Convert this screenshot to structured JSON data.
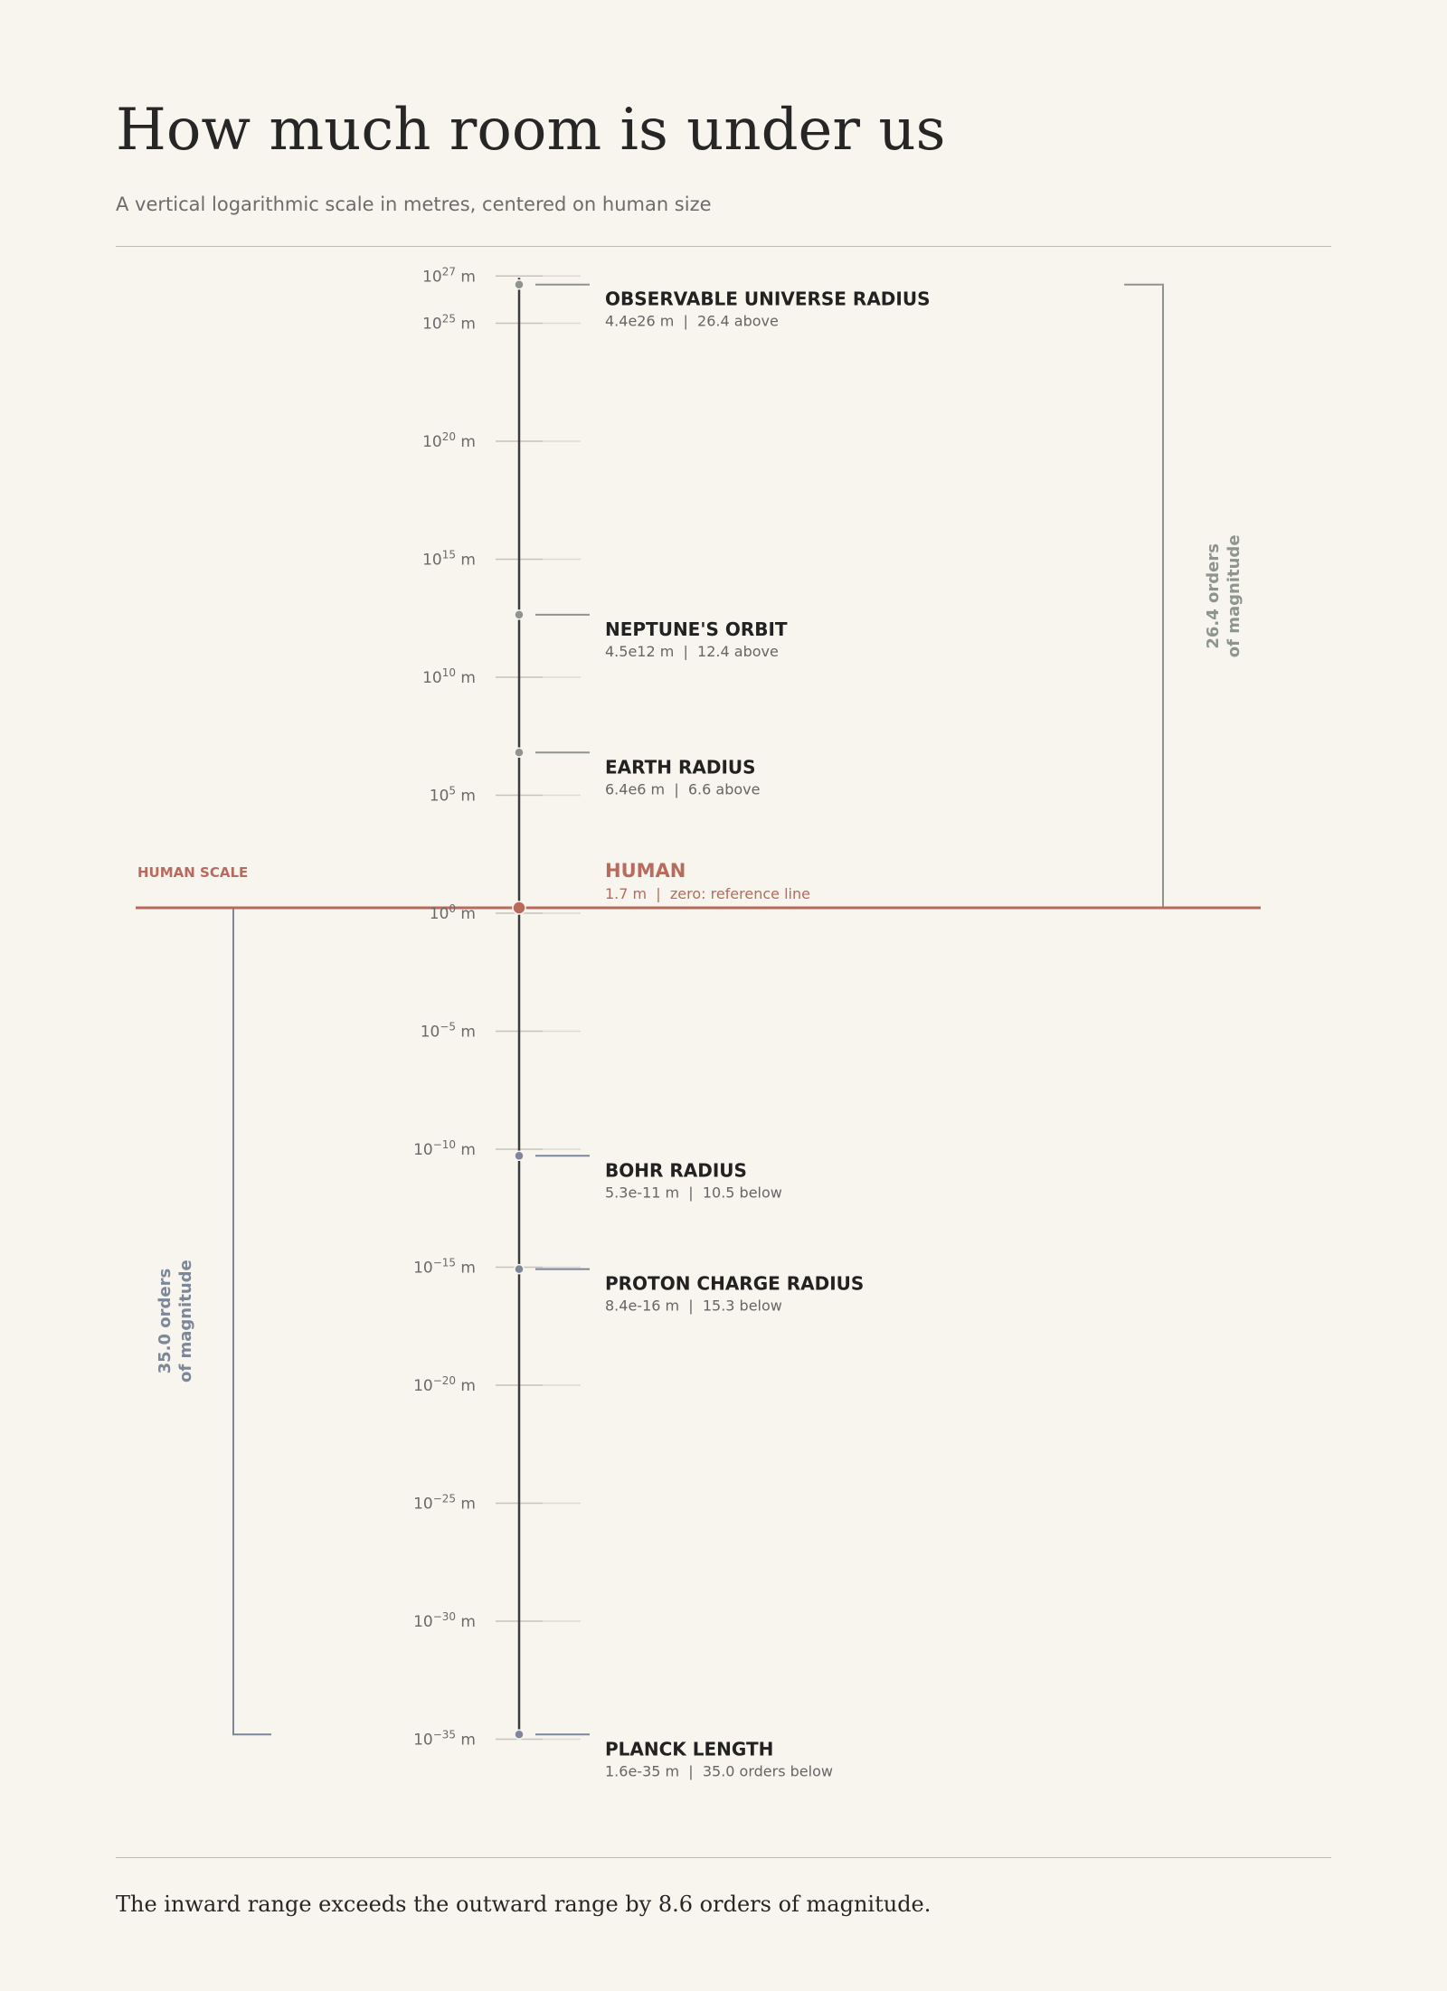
{
  "title": "How much room is under us",
  "subtitle": "A vertical logarithmic scale in metres, centered on human size",
  "footer": "The inward range exceeds the outward range by 8.6 orders of magnitude.",
  "colors": {
    "background": "#f8f4ee",
    "axis": "#3b3b3b",
    "human": "#b86a5c",
    "outward_bracket": "#8d958e",
    "inward_bracket": "#7c8799",
    "marker": "#8f948f",
    "label": "#222222",
    "sublabel": "#666666"
  },
  "chart_data": {
    "type": "scatter",
    "scale": "log10",
    "unit": "m",
    "ylim_exponent": [
      -35,
      27
    ],
    "y_ticks": [
      {
        "exp": 27,
        "label_base": "10",
        "label_exp": "27",
        "unit": "m"
      },
      {
        "exp": 25,
        "label_base": "10",
        "label_exp": "25",
        "unit": "m"
      },
      {
        "exp": 20,
        "label_base": "10",
        "label_exp": "20",
        "unit": "m"
      },
      {
        "exp": 15,
        "label_base": "10",
        "label_exp": "15",
        "unit": "m"
      },
      {
        "exp": 10,
        "label_base": "10",
        "label_exp": "10",
        "unit": "m"
      },
      {
        "exp": 5,
        "label_base": "10",
        "label_exp": "5",
        "unit": "m"
      },
      {
        "exp": 0,
        "label_base": "10",
        "label_exp": "0",
        "unit": "m"
      },
      {
        "exp": -5,
        "label_base": "10",
        "label_exp": "−5",
        "unit": "m"
      },
      {
        "exp": -10,
        "label_base": "10",
        "label_exp": "−10",
        "unit": "m"
      },
      {
        "exp": -15,
        "label_base": "10",
        "label_exp": "−15",
        "unit": "m"
      },
      {
        "exp": -20,
        "label_base": "10",
        "label_exp": "−20",
        "unit": "m"
      },
      {
        "exp": -25,
        "label_base": "10",
        "label_exp": "−25",
        "unit": "m"
      },
      {
        "exp": -30,
        "label_base": "10",
        "label_exp": "−30",
        "unit": "m"
      },
      {
        "exp": -35,
        "label_base": "10",
        "label_exp": "−35",
        "unit": "m"
      }
    ],
    "points": [
      {
        "name": "OBSERVABLE UNIVERSE RADIUS",
        "value_m": 4.4e+26,
        "log10": 26.64,
        "detail": "4.4e26 m  |  26.4 above",
        "side": "above"
      },
      {
        "name": "NEPTUNE'S ORBIT",
        "value_m": 4500000000000.0,
        "log10": 12.65,
        "detail": "4.5e12 m  |  12.4 above",
        "side": "above"
      },
      {
        "name": "EARTH RADIUS",
        "value_m": 6400000.0,
        "log10": 6.81,
        "detail": "6.4e6 m  |  6.6 above",
        "side": "above"
      },
      {
        "name": "HUMAN",
        "value_m": 1.7,
        "log10": 0.23,
        "detail": "1.7 m  |  zero: reference line",
        "side": "reference"
      },
      {
        "name": "BOHR RADIUS",
        "value_m": 5.3e-11,
        "log10": -10.28,
        "detail": "5.3e-11 m  |  10.5 below",
        "side": "below"
      },
      {
        "name": "PROTON CHARGE RADIUS",
        "value_m": 8.4e-16,
        "log10": -15.08,
        "detail": "8.4e-16 m  |  15.3 below",
        "side": "below"
      },
      {
        "name": "PLANCK LENGTH",
        "value_m": 1.6e-35,
        "log10": -34.8,
        "detail": "1.6e-35 m  |  35.0 orders below",
        "side": "below"
      }
    ],
    "reference_line": {
      "label": "HUMAN SCALE",
      "log10": 0.23
    },
    "brackets": {
      "outward": {
        "orders": 26.4,
        "line1": "26.4 orders",
        "line2": "of magnitude",
        "from": 0.23,
        "to": 26.64
      },
      "inward": {
        "orders": 35.0,
        "line1": "35.0 orders",
        "line2": "of magnitude",
        "from": -34.8,
        "to": 0.23
      }
    }
  }
}
